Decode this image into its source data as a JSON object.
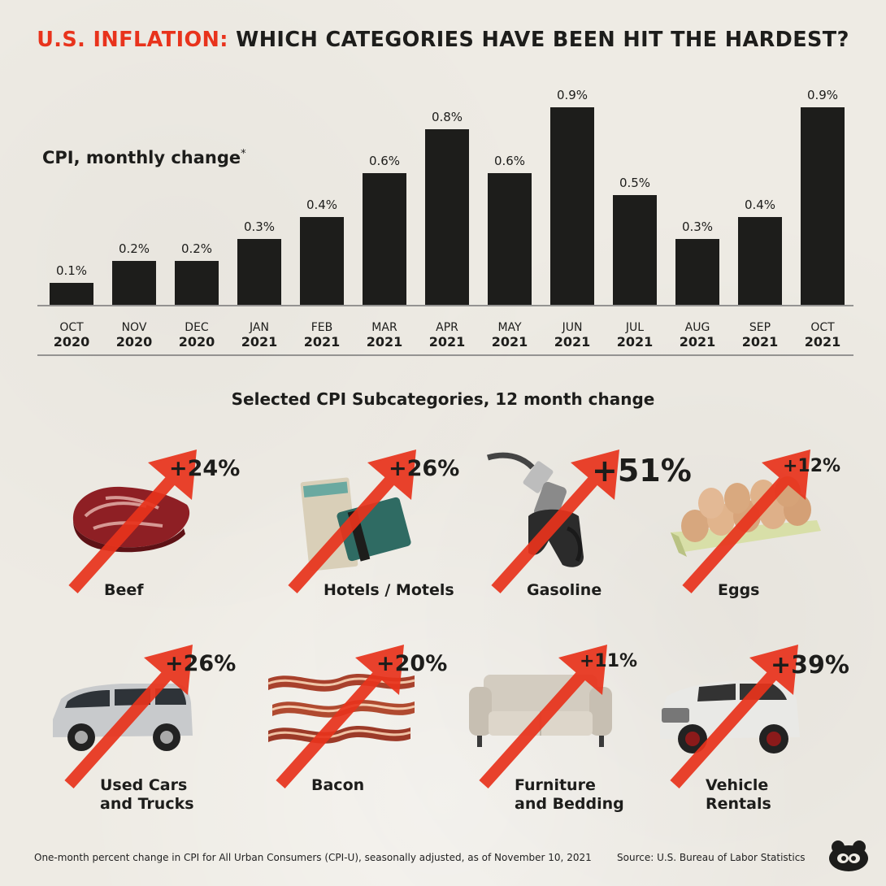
{
  "title": {
    "highlight": "U.S. INFLATION:",
    "rest": " WHICH CATEGORIES HAVE BEEN HIT THE HARDEST?"
  },
  "chart_data": [
    {
      "type": "bar",
      "ylabel": "CPI, monthly change",
      "ylabel_mark": "*",
      "categories": [
        {
          "month": "OCT",
          "year": "2020"
        },
        {
          "month": "NOV",
          "year": "2020"
        },
        {
          "month": "DEC",
          "year": "2020"
        },
        {
          "month": "JAN",
          "year": "2021"
        },
        {
          "month": "FEB",
          "year": "2021"
        },
        {
          "month": "MAR",
          "year": "2021"
        },
        {
          "month": "APR",
          "year": "2021"
        },
        {
          "month": "MAY",
          "year": "2021"
        },
        {
          "month": "JUN",
          "year": "2021"
        },
        {
          "month": "JUL",
          "year": "2021"
        },
        {
          "month": "AUG",
          "year": "2021"
        },
        {
          "month": "SEP",
          "year": "2021"
        },
        {
          "month": "OCT",
          "year": "2021"
        }
      ],
      "values": [
        0.1,
        0.2,
        0.2,
        0.3,
        0.4,
        0.6,
        0.8,
        0.6,
        0.9,
        0.5,
        0.3,
        0.4,
        0.9
      ],
      "value_labels": [
        "0.1%",
        "0.2%",
        "0.2%",
        "0.3%",
        "0.4%",
        "0.6%",
        "0.8%",
        "0.6%",
        "0.9%",
        "0.5%",
        "0.3%",
        "0.4%",
        "0.9%"
      ],
      "ylim": [
        0,
        0.9
      ],
      "grid": false,
      "bar_color": "#1d1d1b"
    },
    {
      "type": "table",
      "title": "Selected CPI Subcategories, 12 month change",
      "items": [
        {
          "name": "Beef",
          "change": "+24%",
          "value": 24,
          "icon": "beef-icon"
        },
        {
          "name": "Hotels / Motels",
          "change": "+26%",
          "value": 26,
          "icon": "hotel-keycard-icon"
        },
        {
          "name": "Gasoline",
          "change": "+51%",
          "value": 51,
          "icon": "fuel-nozzle-icon"
        },
        {
          "name": "Eggs",
          "change": "+12%",
          "value": 12,
          "icon": "eggs-icon"
        },
        {
          "name": "Used Cars\nand Trucks",
          "change": "+26%",
          "value": 26,
          "icon": "minivan-icon"
        },
        {
          "name": "Bacon",
          "change": "+20%",
          "value": 20,
          "icon": "bacon-icon"
        },
        {
          "name": "Furniture\nand Bedding",
          "change": "+11%",
          "value": 11,
          "icon": "sofa-icon"
        },
        {
          "name": "Vehicle\nRentals",
          "change": "+39%",
          "value": 39,
          "icon": "suv-icon"
        }
      ]
    }
  ],
  "colors": {
    "accent": "#e8331c",
    "ink": "#1d1d1b",
    "background": "#eeebe4"
  },
  "footer": {
    "note": "One-month percent change in CPI for All Urban Consumers (CPI-U), seasonally adjusted, as of November 10, 2021",
    "source": "Source: U.S. Bureau of Labor Statistics"
  },
  "logo": "visual-capitalist-logo-icon"
}
